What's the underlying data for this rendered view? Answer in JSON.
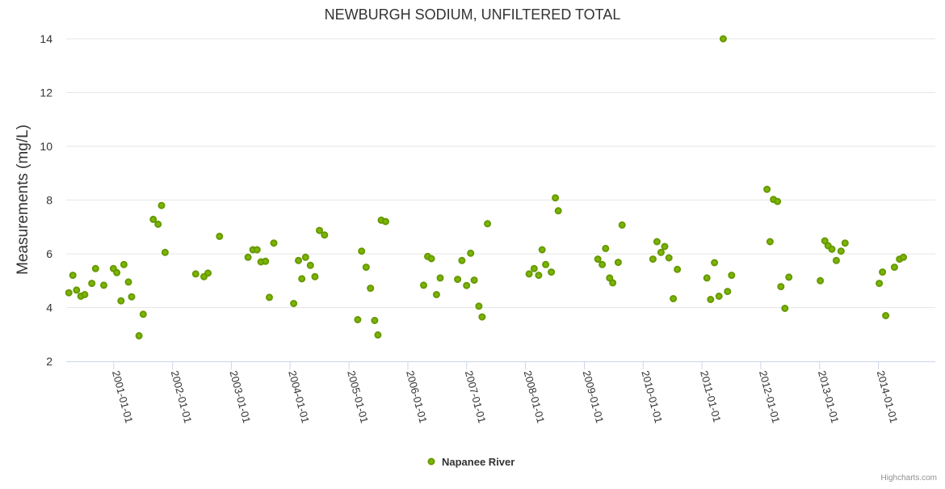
{
  "chart_data": {
    "type": "scatter",
    "title": "NEWBURGH SODIUM, UNFILTERED TOTAL",
    "ylabel": "Measurements (mg/L)",
    "ylim": [
      2,
      14
    ],
    "yticks": [
      2,
      4,
      6,
      8,
      10,
      12,
      14
    ],
    "xlim": [
      "2000-03-12",
      "2014-12-20"
    ],
    "xticks": [
      "2001-01-01",
      "2002-01-01",
      "2003-01-01",
      "2004-01-01",
      "2005-01-01",
      "2006-01-01",
      "2007-01-01",
      "2008-01-01",
      "2009-01-01",
      "2010-01-01",
      "2011-01-01",
      "2012-01-01",
      "2013-01-01",
      "2014-01-01"
    ],
    "grid": true,
    "legend_position": "bottom-center",
    "series": [
      {
        "name": "Napanee River",
        "color": "#669900",
        "fill": "#7cb500",
        "points": [
          [
            "2000-03-28",
            4.55
          ],
          [
            "2000-04-22",
            5.2
          ],
          [
            "2000-05-15",
            4.65
          ],
          [
            "2000-06-11",
            4.42
          ],
          [
            "2000-07-05",
            4.48
          ],
          [
            "2000-08-18",
            4.9
          ],
          [
            "2000-09-10",
            5.45
          ],
          [
            "2000-10-31",
            4.83
          ],
          [
            "2000-12-30",
            5.45
          ],
          [
            "2001-01-20",
            5.3
          ],
          [
            "2001-02-15",
            4.25
          ],
          [
            "2001-03-05",
            5.6
          ],
          [
            "2001-04-02",
            4.95
          ],
          [
            "2001-04-22",
            4.4
          ],
          [
            "2001-06-07",
            2.95
          ],
          [
            "2001-07-03",
            3.75
          ],
          [
            "2001-09-03",
            7.28
          ],
          [
            "2001-10-03",
            7.1
          ],
          [
            "2001-10-25",
            7.8
          ],
          [
            "2001-11-16",
            6.05
          ],
          [
            "2002-05-25",
            5.25
          ],
          [
            "2002-07-15",
            5.15
          ],
          [
            "2002-08-09",
            5.28
          ],
          [
            "2002-10-20",
            6.65
          ],
          [
            "2003-04-15",
            5.87
          ],
          [
            "2003-05-15",
            6.15
          ],
          [
            "2003-06-10",
            6.15
          ],
          [
            "2003-07-04",
            5.7
          ],
          [
            "2003-08-01",
            5.72
          ],
          [
            "2003-08-25",
            4.38
          ],
          [
            "2003-09-22",
            6.4
          ],
          [
            "2004-01-23",
            4.15
          ],
          [
            "2004-02-22",
            5.75
          ],
          [
            "2004-03-14",
            5.07
          ],
          [
            "2004-04-06",
            5.87
          ],
          [
            "2004-05-06",
            5.57
          ],
          [
            "2004-06-03",
            5.15
          ],
          [
            "2004-07-01",
            6.87
          ],
          [
            "2004-08-02",
            6.7
          ],
          [
            "2005-02-24",
            3.55
          ],
          [
            "2005-03-20",
            6.1
          ],
          [
            "2005-04-17",
            5.5
          ],
          [
            "2005-05-14",
            4.72
          ],
          [
            "2005-06-09",
            3.52
          ],
          [
            "2005-06-29",
            2.98
          ],
          [
            "2005-07-20",
            7.25
          ],
          [
            "2005-08-16",
            7.2
          ],
          [
            "2006-04-09",
            4.83
          ],
          [
            "2006-05-04",
            5.9
          ],
          [
            "2006-05-27",
            5.82
          ],
          [
            "2006-06-28",
            4.48
          ],
          [
            "2006-07-21",
            5.1
          ],
          [
            "2006-11-06",
            5.05
          ],
          [
            "2006-12-03",
            5.75
          ],
          [
            "2007-01-01",
            4.82
          ],
          [
            "2007-01-26",
            6.02
          ],
          [
            "2007-02-17",
            5.02
          ],
          [
            "2007-03-18",
            4.05
          ],
          [
            "2007-04-07",
            3.65
          ],
          [
            "2007-05-11",
            7.12
          ],
          [
            "2008-01-24",
            5.25
          ],
          [
            "2008-02-24",
            5.45
          ],
          [
            "2008-03-23",
            5.2
          ],
          [
            "2008-04-14",
            6.15
          ],
          [
            "2008-05-06",
            5.6
          ],
          [
            "2008-06-10",
            5.32
          ],
          [
            "2008-07-05",
            8.08
          ],
          [
            "2008-07-23",
            7.6
          ],
          [
            "2009-03-26",
            5.8
          ],
          [
            "2009-04-22",
            5.6
          ],
          [
            "2009-05-13",
            6.2
          ],
          [
            "2009-06-07",
            5.1
          ],
          [
            "2009-06-26",
            4.92
          ],
          [
            "2009-07-30",
            5.68
          ],
          [
            "2009-08-23",
            7.07
          ],
          [
            "2010-03-03",
            5.8
          ],
          [
            "2010-03-28",
            6.45
          ],
          [
            "2010-04-22",
            6.05
          ],
          [
            "2010-05-15",
            6.27
          ],
          [
            "2010-06-10",
            5.85
          ],
          [
            "2010-07-07",
            4.33
          ],
          [
            "2010-08-01",
            5.42
          ],
          [
            "2011-02-01",
            5.1
          ],
          [
            "2011-02-24",
            4.3
          ],
          [
            "2011-03-20",
            5.67
          ],
          [
            "2011-04-17",
            4.42
          ],
          [
            "2011-05-13",
            14.0
          ],
          [
            "2011-06-09",
            4.6
          ],
          [
            "2011-07-04",
            5.2
          ],
          [
            "2012-02-09",
            8.4
          ],
          [
            "2012-02-28",
            6.45
          ],
          [
            "2012-03-20",
            8.02
          ],
          [
            "2012-04-14",
            7.95
          ],
          [
            "2012-05-05",
            4.78
          ],
          [
            "2012-05-30",
            3.97
          ],
          [
            "2012-06-24",
            5.13
          ],
          [
            "2013-01-05",
            5.0
          ],
          [
            "2013-02-02",
            6.48
          ],
          [
            "2013-02-22",
            6.3
          ],
          [
            "2013-03-18",
            6.17
          ],
          [
            "2013-04-14",
            5.75
          ],
          [
            "2013-05-14",
            6.1
          ],
          [
            "2013-06-08",
            6.4
          ],
          [
            "2014-01-06",
            4.9
          ],
          [
            "2014-01-26",
            5.32
          ],
          [
            "2014-02-15",
            3.7
          ],
          [
            "2014-04-10",
            5.5
          ],
          [
            "2014-05-12",
            5.8
          ],
          [
            "2014-06-05",
            5.87
          ]
        ]
      }
    ]
  },
  "credits": "Highcharts.com"
}
